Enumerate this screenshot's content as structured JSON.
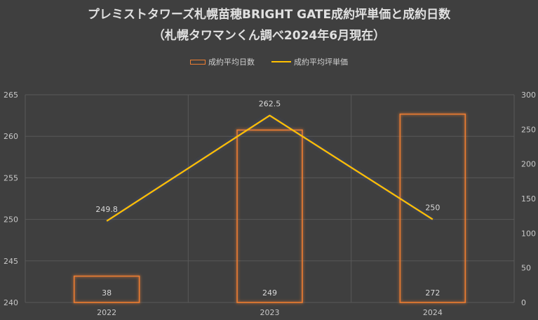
{
  "title": {
    "line1": "プレミストタワーズ札幌苗穂BRIGHT GATE成約坪単価と成約日数",
    "line2": "（札幌タワマンくん調べ2024年6月現在）"
  },
  "colors": {
    "bar": "#ed7d31",
    "line": "#ffc000",
    "background": "#3f3f3f",
    "grid": "#595959"
  },
  "chart_data": {
    "type": "bar+line",
    "categories": [
      "2022",
      "2023",
      "2024"
    ],
    "series": [
      {
        "name": "成約平均日数",
        "type": "bar",
        "axis": "secondary",
        "values": [
          38,
          249,
          272
        ]
      },
      {
        "name": "成約平均坪単価",
        "type": "line",
        "axis": "primary",
        "values": [
          249.8,
          262.5,
          250
        ]
      }
    ],
    "y_primary": {
      "lim": [
        240,
        265
      ],
      "ticks": [
        "240",
        "245",
        "250",
        "255",
        "260",
        "265"
      ]
    },
    "y_secondary": {
      "lim": [
        0,
        300
      ],
      "ticks": [
        "0",
        "50",
        "100",
        "150",
        "200",
        "250",
        "300"
      ]
    },
    "grid": true,
    "legend_position": "top"
  }
}
